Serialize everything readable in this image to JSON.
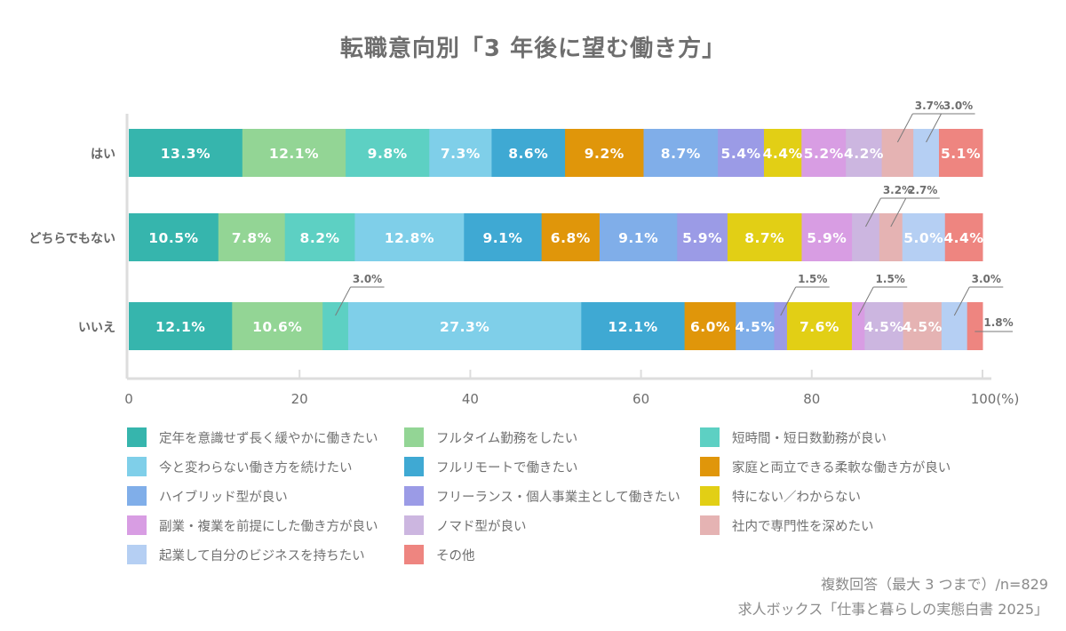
{
  "chart_data": {
    "type": "bar",
    "orientation": "horizontal",
    "stacked": "100%",
    "title": "転職意向別「3 年後に望む働き方」",
    "xlabel": "",
    "ylabel": "",
    "xlim": [
      0,
      100
    ],
    "x_ticks": [
      "0",
      "20",
      "40",
      "60",
      "80",
      "100(%)"
    ],
    "x_tick_values": [
      0,
      20,
      40,
      60,
      80,
      100
    ],
    "grid": false,
    "legend_position": "bottom",
    "categories": [
      "はい",
      "どちらでもない",
      "いいえ"
    ],
    "series": [
      {
        "name": "定年を意識せず長く緩やかに働きたい",
        "color": "#36b5ad",
        "values": [
          13.3,
          10.5,
          12.1
        ]
      },
      {
        "name": "フルタイム勤務をしたい",
        "color": "#93d595",
        "values": [
          12.1,
          7.8,
          10.6
        ]
      },
      {
        "name": "短時間・短日数勤務が良い",
        "color": "#5dd0c3",
        "values": [
          9.8,
          8.2,
          3.0
        ]
      },
      {
        "name": "今と変わらない働き方を続けたい",
        "color": "#7fcfe9",
        "values": [
          7.3,
          12.8,
          27.3
        ]
      },
      {
        "name": "フルリモートで働きたい",
        "color": "#3fa9d3",
        "values": [
          8.6,
          9.1,
          12.1
        ]
      },
      {
        "name": "家庭と両立できる柔軟な働き方が良い",
        "color": "#e0960a",
        "values": [
          9.2,
          6.8,
          6.0
        ]
      },
      {
        "name": "ハイブリッド型が良い",
        "color": "#80aee9",
        "values": [
          8.7,
          9.1,
          4.5
        ]
      },
      {
        "name": "フリーランス・個人事業主として働きたい",
        "color": "#9b9be6",
        "values": [
          5.4,
          5.9,
          1.5
        ]
      },
      {
        "name": "特にない／わからない",
        "color": "#e2cf15",
        "values": [
          4.4,
          8.7,
          7.6
        ]
      },
      {
        "name": "副業・複業を前提にした働き方が良い",
        "color": "#d89de3",
        "values": [
          5.2,
          5.9,
          1.5
        ]
      },
      {
        "name": "ノマド型が良い",
        "color": "#ccb6e0",
        "values": [
          4.2,
          3.2,
          4.5
        ]
      },
      {
        "name": "社内で専門性を深めたい",
        "color": "#e5b3b3",
        "values": [
          3.7,
          2.7,
          4.5
        ]
      },
      {
        "name": "起業して自分のビジネスを持ちたい",
        "color": "#b5cff3",
        "values": [
          3.0,
          5.0,
          3.0
        ]
      },
      {
        "name": "その他",
        "color": "#ee8580",
        "values": [
          5.1,
          4.4,
          1.8
        ]
      }
    ],
    "data_labels": [
      [
        "13.3%",
        "12.1%",
        "9.8%",
        "7.3%",
        "8.6%",
        "9.2%",
        "8.7%",
        "5.4%",
        "4.4%",
        "5.2%",
        "4.2%",
        "3.7%",
        "3.0%",
        "5.1%"
      ],
      [
        "10.5%",
        "7.8%",
        "8.2%",
        "12.8%",
        "9.1%",
        "6.8%",
        "9.1%",
        "5.9%",
        "8.7%",
        "5.9%",
        "3.2%",
        "2.7%",
        "5.0%",
        "4.4%"
      ],
      [
        "12.1%",
        "10.6%",
        "3.0%",
        "27.3%",
        "12.1%",
        "6.0%",
        "4.5%",
        "1.5%",
        "7.6%",
        "1.5%",
        "4.5%",
        "4.5%",
        "3.0%",
        "1.8%"
      ]
    ],
    "callout_labels": [
      [
        11,
        12
      ],
      [
        10,
        11
      ],
      [
        2,
        7,
        9,
        12,
        13
      ]
    ]
  },
  "notes": {
    "responses": "複数回答（最大 3 つまで）/n=829",
    "source": "求人ボックス「仕事と暮らしの実態白書 2025」"
  }
}
